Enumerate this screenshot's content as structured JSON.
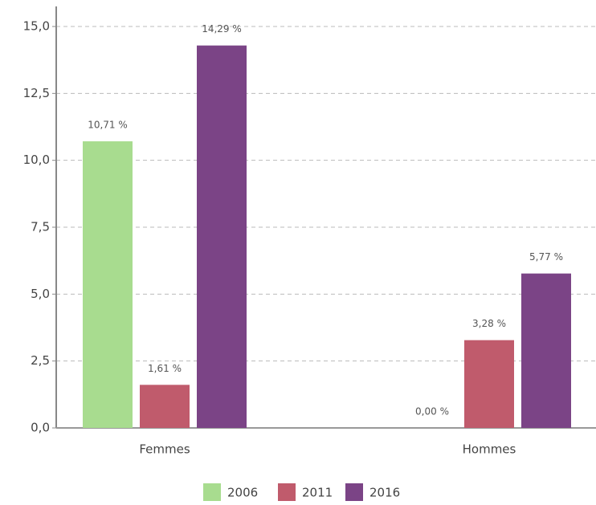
{
  "chart_data": {
    "type": "bar",
    "categories": [
      "Femmes",
      "Hommes"
    ],
    "series": [
      {
        "name": "2006",
        "color": "#a8dc8f",
        "values": [
          10.71,
          0
        ],
        "value_labels": [
          "10,71 %",
          "0,00 %"
        ]
      },
      {
        "name": "2011",
        "color": "#c05b6c",
        "values": [
          1.61,
          3.28
        ],
        "value_labels": [
          "1,61 %",
          "3,28 %"
        ]
      },
      {
        "name": "2016",
        "color": "#7b4486",
        "values": [
          14.29,
          5.77
        ],
        "value_labels": [
          "14,29 %",
          "5,77 %"
        ]
      }
    ],
    "ylim": [
      0,
      15.75
    ],
    "yticks": [
      {
        "value": 0,
        "label": "0,0"
      },
      {
        "value": 2.5,
        "label": "2,5"
      },
      {
        "value": 5,
        "label": "5,0"
      },
      {
        "value": 7.5,
        "label": "7,5"
      },
      {
        "value": 10,
        "label": "10,0"
      },
      {
        "value": 12.5,
        "label": "12,5"
      },
      {
        "value": 15,
        "label": "15,0"
      }
    ],
    "grid": true,
    "legend": "bottom"
  }
}
